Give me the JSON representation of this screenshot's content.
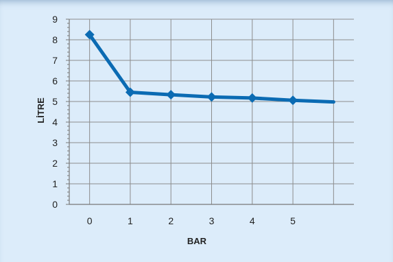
{
  "chart_data": {
    "type": "line",
    "xlabel": "BAR",
    "ylabel": "LİTRE",
    "x_ticks": [
      "0",
      "1",
      "2",
      "3",
      "4",
      "5"
    ],
    "y_ticks": [
      "0",
      "1",
      "2",
      "3",
      "4",
      "5",
      "6",
      "7",
      "8",
      "9"
    ],
    "xlim": [
      -0.5,
      6.5
    ],
    "ylim": [
      0,
      9
    ],
    "grid": true,
    "legend": "none",
    "line_color": "#0b6bb3",
    "grid_color": "#8c8c8c",
    "series": [
      {
        "x": [
          0,
          1,
          2,
          3,
          4,
          5,
          6
        ],
        "y": [
          8.25,
          5.45,
          5.33,
          5.22,
          5.17,
          5.06,
          4.98
        ],
        "markers": [
          true,
          true,
          true,
          true,
          true,
          true,
          false
        ]
      }
    ]
  }
}
